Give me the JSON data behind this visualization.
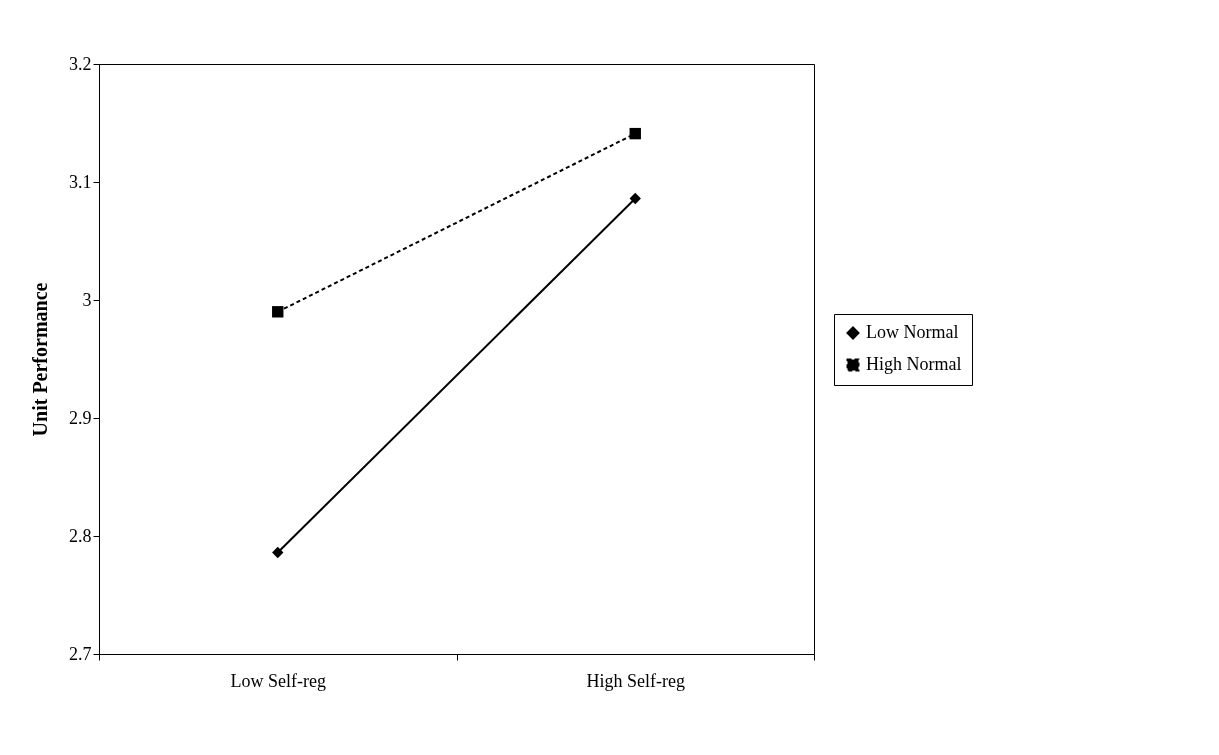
{
  "chart_data": {
    "type": "line",
    "ylabel": "Unit Performance",
    "categories": [
      "Low Self-reg",
      "High Self-reg"
    ],
    "series": [
      {
        "name": "Low Normal",
        "color": "#000000",
        "values": [
          2.786,
          3.086
        ],
        "marker": "diamond",
        "line_style": "solid"
      },
      {
        "name": "High Normal",
        "color": "#000000",
        "values": [
          2.99,
          3.141
        ],
        "marker": "square",
        "line_style": "dashed"
      }
    ],
    "ylim": [
      2.7,
      3.2
    ],
    "yticks": [
      2.7,
      2.8,
      2.9,
      3,
      3.1,
      3.2
    ],
    "grid": false,
    "legend": "right"
  }
}
